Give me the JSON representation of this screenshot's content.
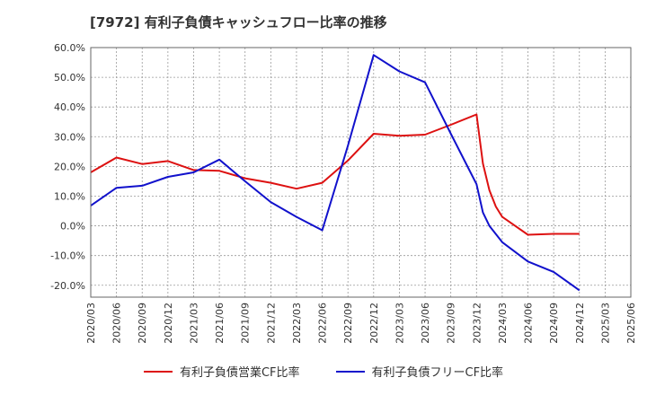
{
  "chart_data": {
    "type": "line",
    "title": "[7972]  有利子負債キャッシュフロー比率の推移",
    "xlabel": "",
    "ylabel": "",
    "ylim": [
      -24,
      60
    ],
    "yticks": [
      "60.0%",
      "50.0%",
      "40.0%",
      "30.0%",
      "20.0%",
      "10.0%",
      "0.0%",
      "-10.0%",
      "-20.0%"
    ],
    "ytick_values": [
      60,
      50,
      40,
      30,
      20,
      10,
      0,
      -10,
      -20
    ],
    "categories": [
      "2020/03",
      "2020/06",
      "2020/09",
      "2020/12",
      "2021/03",
      "2021/06",
      "2021/09",
      "2021/12",
      "2022/03",
      "2022/06",
      "2022/09",
      "2022/12",
      "2023/03",
      "2023/06",
      "2023/09",
      "2023/12",
      "2024/03",
      "2024/06",
      "2024/09",
      "2024/12",
      "2025/03",
      "2025/06"
    ],
    "grid": true,
    "legend_position": "bottom",
    "series": [
      {
        "name": "有利子負債営業CF比率",
        "color": "#dd1111",
        "points": [
          [
            0,
            18
          ],
          [
            1,
            23
          ],
          [
            2,
            20.8
          ],
          [
            3,
            21.8
          ],
          [
            4,
            18.8
          ],
          [
            5,
            18.5
          ],
          [
            6,
            16
          ],
          [
            7,
            14.5
          ],
          [
            8,
            12.5
          ],
          [
            9,
            14.5
          ],
          [
            10,
            22
          ],
          [
            11,
            31
          ],
          [
            12,
            30.3
          ],
          [
            13,
            30.7
          ],
          [
            14,
            34
          ],
          [
            15,
            37.5
          ],
          [
            15.25,
            21
          ],
          [
            15.5,
            12
          ],
          [
            15.75,
            6.5
          ],
          [
            16,
            3
          ],
          [
            17,
            -3
          ],
          [
            18,
            -2.7
          ],
          [
            19,
            -2.7
          ]
        ]
      },
      {
        "name": "有利子負債フリーCF比率",
        "color": "#1111cc",
        "points": [
          [
            0,
            6.8
          ],
          [
            1,
            12.8
          ],
          [
            2,
            13.5
          ],
          [
            3,
            16.5
          ],
          [
            4,
            18
          ],
          [
            5,
            22.3
          ],
          [
            6,
            15
          ],
          [
            7,
            8
          ],
          [
            8,
            3
          ],
          [
            9,
            -1.5
          ],
          [
            10,
            27
          ],
          [
            11,
            57.5
          ],
          [
            12,
            52
          ],
          [
            13,
            48.3
          ],
          [
            14,
            31
          ],
          [
            15,
            14
          ],
          [
            15.25,
            4.5
          ],
          [
            15.5,
            0
          ],
          [
            16,
            -5.5
          ],
          [
            17,
            -12
          ],
          [
            18,
            -15.5
          ],
          [
            19,
            -21.7
          ]
        ]
      }
    ]
  }
}
